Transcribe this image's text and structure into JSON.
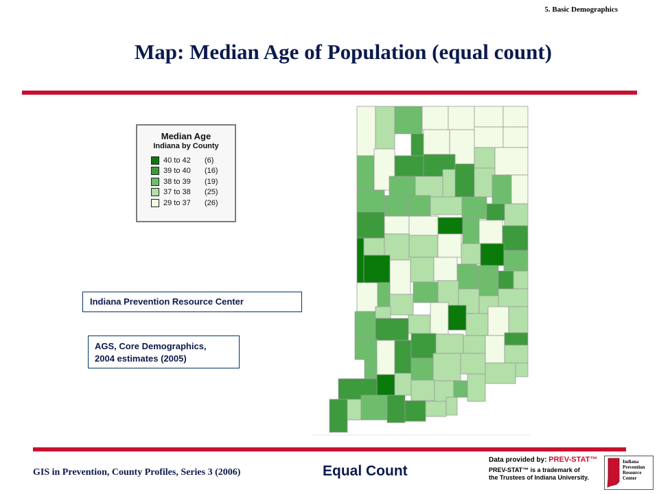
{
  "header": {
    "section": "5. Basic Demographics",
    "title": "Map: Median Age of Population (equal count)"
  },
  "legend": {
    "title": "Median Age",
    "subtitle": "Indiana by County",
    "items": [
      {
        "range": "40 to 42",
        "count": "(6)",
        "color": "#0a7a0a"
      },
      {
        "range": "39 to 40",
        "count": "(16)",
        "color": "#3d9a3d"
      },
      {
        "range": "38 to 39",
        "count": "(19)",
        "color": "#6dbd6d"
      },
      {
        "range": "37 to 38",
        "count": "(25)",
        "color": "#b2e0a8"
      },
      {
        "range": "29 to 37",
        "count": "(26)",
        "color": "#f2fbe5"
      }
    ]
  },
  "boxes": {
    "org": "Indiana Prevention Resource Center",
    "source_line1": "AGS, Core Demographics,",
    "source_line2": "2004 estimates (2005)"
  },
  "footer": {
    "left": "GIS in Prevention, County Profiles, Series 3 (2006)",
    "center": "Equal Count"
  },
  "credit": {
    "prefix": "Data provided by: ",
    "brand": "PREV-STAT™",
    "line2": "PREV-STAT™ is a trademark of",
    "line3": "the Trustees of Indiana University.",
    "logo_line1": "Indiana",
    "logo_line2": "Prevention",
    "logo_line3": "Resource",
    "logo_line4": "Center"
  }
}
